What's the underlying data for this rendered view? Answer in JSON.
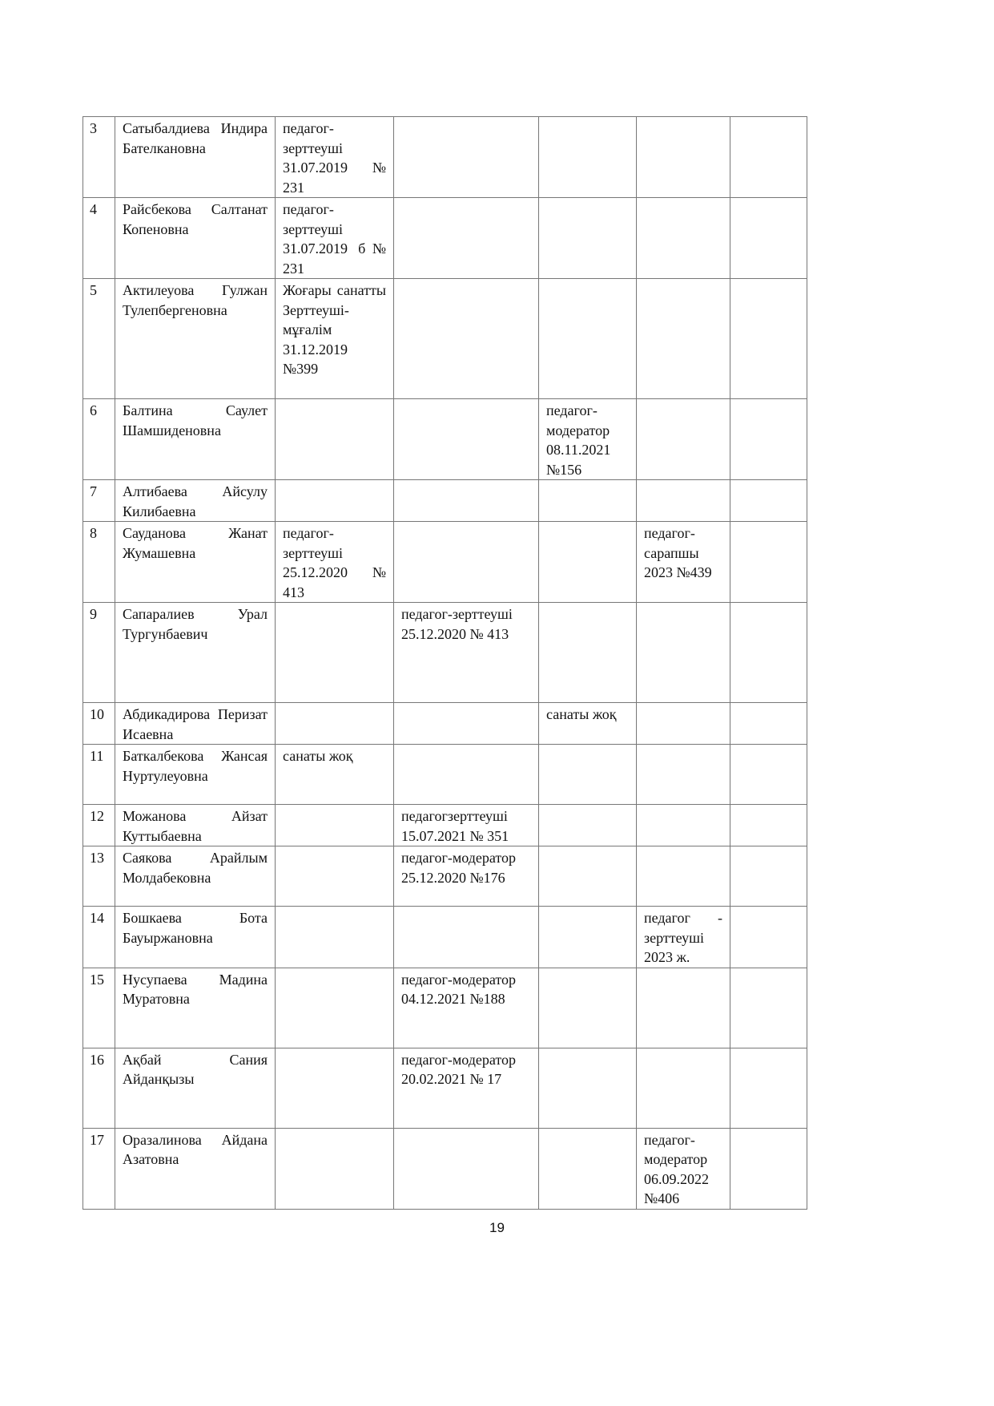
{
  "table": {
    "rows": [
      {
        "num": "3",
        "cells": [
          "Сатыбалдиева Индира Бателкановна",
          "педагог-зерттеуші 31.07.2019 № 231",
          "",
          "",
          "",
          ""
        ]
      },
      {
        "num": "4",
        "cells": [
          "Райсбекова Салтанат Копеновна",
          "педагог-зерттеуші 31.07.2019 б№ 231",
          "",
          "",
          "",
          ""
        ]
      },
      {
        "num": "5",
        "cells": [
          "Актилеуова Гулжан Тулепбергеновна",
          "Жоғары санатты Зерттеуші-мұғалім 31.12.2019 №399",
          "",
          "",
          "",
          ""
        ]
      },
      {
        "num": "6",
        "cells": [
          "Балтина Саулет Шамшиденовна",
          "",
          "",
          "педагог-модератор 08.11.2021 №156",
          "",
          ""
        ]
      },
      {
        "num": "7",
        "cells": [
          "Алтибаева Айсулу Килибаевна",
          "",
          "",
          "",
          "",
          ""
        ]
      },
      {
        "num": "8",
        "cells": [
          "Сауданова Жанат Жумашевна",
          "педагог-зерттеуші 25.12.2020 № 413",
          "",
          "",
          "педагог-сарапшы 2023 №439",
          ""
        ]
      },
      {
        "num": "9",
        "cells": [
          "Сапаралиев Урал Тургунбаевич",
          "",
          "педагог-зерттеуші 25.12.2020 № 413",
          "",
          "",
          ""
        ]
      },
      {
        "num": "10",
        "cells": [
          "Абдикадирова Перизат Исаевна",
          "",
          "",
          "санаты жоқ",
          "",
          ""
        ]
      },
      {
        "num": "11",
        "cells": [
          "Баткалбекова Жансая Нуртулеуовна",
          "санаты жоқ",
          "",
          "",
          "",
          ""
        ]
      },
      {
        "num": "12",
        "cells": [
          "Можанова Айзат Куттыбаевна",
          "",
          "педагогзерттеуші 15.07.2021 № 351",
          "",
          "",
          ""
        ]
      },
      {
        "num": "13",
        "cells": [
          "Саякова Арайлым Молдабековна",
          "",
          "педагог-модератор 25.12.2020 №176",
          "",
          "",
          ""
        ]
      },
      {
        "num": "14",
        "cells": [
          "Бошкаева Бота Бауыржановна",
          "",
          "",
          "",
          "педагог - зерттеуші 2023 ж.",
          ""
        ]
      },
      {
        "num": "15",
        "cells": [
          "Нусупаева Мадина Муратовна",
          "",
          "педагог-модератор 04.12.2021 №188",
          "",
          "",
          ""
        ]
      },
      {
        "num": "16",
        "cells": [
          "Ақбай Сания Айданқызы",
          "",
          "педагог-модератор 20.02.2021 № 17",
          "",
          "",
          ""
        ]
      },
      {
        "num": "17",
        "cells": [
          "Оразалинова Айдана Азатовна",
          "",
          "",
          "",
          "педагог-модератор 06.09.2022 №406",
          ""
        ]
      }
    ]
  },
  "page_number": "19"
}
